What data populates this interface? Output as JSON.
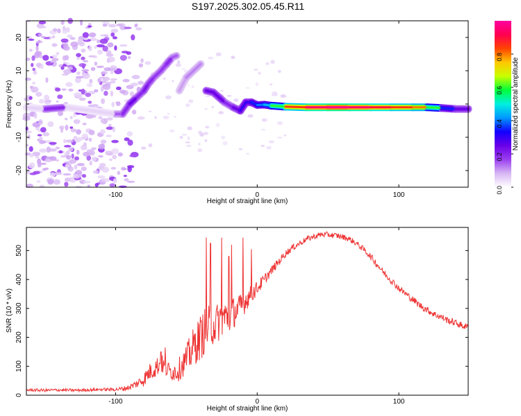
{
  "chart_data": [
    {
      "type": "heatmap",
      "title": "S197.2025.302.05.45.R11",
      "xlabel": "Height of straight line (km)",
      "ylabel": "Frequency (Hz)",
      "xlim": [
        -163,
        149
      ],
      "ylim": [
        -25,
        25
      ],
      "xticks": [
        -100,
        0,
        100
      ],
      "yticks": [
        -20,
        -10,
        0,
        10,
        20
      ],
      "colorbar": {
        "label": "Normalized spectral amplitude",
        "range": [
          0,
          1
        ],
        "ticks": [
          "0.0",
          "0.2",
          "0.4",
          "0.6",
          "0.8"
        ],
        "colors": [
          "#ffffff",
          "#d7b6f3",
          "#9a3ef0",
          "#6a00e8",
          "#1200ff",
          "#0098ff",
          "#00f0e0",
          "#00ff3a",
          "#c8ff00",
          "#ffc800",
          "#ff4400",
          "#ff0050",
          "#ff00a0"
        ]
      },
      "ridge": [
        {
          "x": -163,
          "y": -1.0,
          "a": 0.05
        },
        {
          "x": -150,
          "y": -1.5,
          "a": 0.2
        },
        {
          "x": -135,
          "y": -1.0,
          "a": 0.05
        },
        {
          "x": -100,
          "y": -3.0,
          "a": 0.15
        },
        {
          "x": -95,
          "y": -3.0,
          "a": 0.2
        },
        {
          "x": -90,
          "y": 0.0,
          "a": 0.25
        },
        {
          "x": -85,
          "y": 2.0,
          "a": 0.2
        },
        {
          "x": -80,
          "y": 4.0,
          "a": 0.22
        },
        {
          "x": -77,
          "y": 6.0,
          "a": 0.2
        },
        {
          "x": -73,
          "y": 8.0,
          "a": 0.18
        },
        {
          "x": -68,
          "y": 10.0,
          "a": 0.18
        },
        {
          "x": -64,
          "y": 12.0,
          "a": 0.2
        },
        {
          "x": -60,
          "y": 14.0,
          "a": 0.15
        },
        {
          "x": -57,
          "y": 14.5,
          "a": 0.1
        },
        {
          "x": -55,
          "y": 4.0,
          "a": 0.1
        },
        {
          "x": -50,
          "y": 8.0,
          "a": 0.12
        },
        {
          "x": -45,
          "y": 10.0,
          "a": 0.12
        },
        {
          "x": -40,
          "y": 12.0,
          "a": 0.1
        },
        {
          "x": -36,
          "y": 4.0,
          "a": 0.25
        },
        {
          "x": -31,
          "y": 3.5,
          "a": 0.25
        },
        {
          "x": -27,
          "y": 2.0,
          "a": 0.25
        },
        {
          "x": -23,
          "y": 0.5,
          "a": 0.2
        },
        {
          "x": -17,
          "y": -1.0,
          "a": 0.25
        },
        {
          "x": -12,
          "y": -2.0,
          "a": 0.3
        },
        {
          "x": -8,
          "y": 0.5,
          "a": 0.3
        },
        {
          "x": -4,
          "y": 0.5,
          "a": 0.35
        },
        {
          "x": 0,
          "y": -0.3,
          "a": 0.4
        },
        {
          "x": 5,
          "y": -0.2,
          "a": 0.45
        },
        {
          "x": 10,
          "y": -0.5,
          "a": 0.6
        },
        {
          "x": 20,
          "y": -0.8,
          "a": 0.85
        },
        {
          "x": 35,
          "y": -1.0,
          "a": 0.95
        },
        {
          "x": 50,
          "y": -1.0,
          "a": 0.98
        },
        {
          "x": 65,
          "y": -1.0,
          "a": 0.95
        },
        {
          "x": 80,
          "y": -1.0,
          "a": 0.9
        },
        {
          "x": 95,
          "y": -1.0,
          "a": 0.85
        },
        {
          "x": 110,
          "y": -1.0,
          "a": 0.8
        },
        {
          "x": 120,
          "y": -1.0,
          "a": 0.6
        },
        {
          "x": 130,
          "y": -1.2,
          "a": 0.35
        },
        {
          "x": 140,
          "y": -1.5,
          "a": 0.25
        },
        {
          "x": 149,
          "y": -1.5,
          "a": 0.2
        }
      ]
    },
    {
      "type": "line",
      "xlabel": "Height of straight line (km)",
      "ylabel": "SNR (10 * v/v)",
      "xlim": [
        -163,
        149
      ],
      "ylim": [
        0,
        580
      ],
      "xticks": [
        -100,
        0,
        100
      ],
      "yticks": [
        0,
        100,
        200,
        300,
        400,
        500
      ],
      "color": "#ee3333",
      "x": [
        -163,
        -150,
        -140,
        -130,
        -120,
        -110,
        -100,
        -95,
        -90,
        -85,
        -80,
        -76,
        -72,
        -68,
        -64,
        -60,
        -56,
        -52,
        -48,
        -44,
        -40,
        -36,
        -32,
        -28,
        -24,
        -20,
        -16,
        -12,
        -8,
        -4,
        0,
        5,
        10,
        15,
        20,
        25,
        30,
        35,
        40,
        45,
        50,
        55,
        60,
        65,
        70,
        75,
        80,
        85,
        90,
        95,
        100,
        105,
        110,
        115,
        120,
        125,
        130,
        135,
        140,
        145,
        149
      ],
      "y": [
        18,
        17,
        18,
        17,
        18,
        20,
        20,
        22,
        28,
        40,
        55,
        80,
        95,
        110,
        90,
        80,
        85,
        110,
        140,
        175,
        200,
        230,
        240,
        250,
        270,
        270,
        290,
        300,
        330,
        350,
        370,
        400,
        430,
        460,
        490,
        510,
        525,
        540,
        548,
        555,
        555,
        552,
        548,
        540,
        525,
        505,
        480,
        450,
        420,
        395,
        370,
        350,
        330,
        310,
        295,
        280,
        270,
        258,
        250,
        240,
        235
      ],
      "noise": [
        5,
        5,
        5,
        5,
        5,
        5,
        6,
        8,
        10,
        15,
        25,
        30,
        35,
        35,
        30,
        30,
        40,
        45,
        60,
        70,
        80,
        80,
        70,
        70,
        65,
        60,
        55,
        50,
        40,
        30,
        25,
        20,
        15,
        15,
        12,
        12,
        10,
        10,
        10,
        10,
        10,
        10,
        10,
        10,
        10,
        10,
        12,
        12,
        12,
        12,
        12,
        12,
        12,
        12,
        12,
        12,
        12,
        12,
        12,
        12,
        12
      ],
      "spikes": [
        {
          "x": -68,
          "y": 150
        },
        {
          "x": -65,
          "y": 165
        },
        {
          "x": -36,
          "y": 545
        },
        {
          "x": -33,
          "y": 525
        },
        {
          "x": -25,
          "y": 545
        },
        {
          "x": -20,
          "y": 480
        },
        {
          "x": -18,
          "y": 520
        },
        {
          "x": -10,
          "y": 545
        },
        {
          "x": -4,
          "y": 505
        },
        {
          "x": 5,
          "y": 400
        }
      ]
    }
  ]
}
